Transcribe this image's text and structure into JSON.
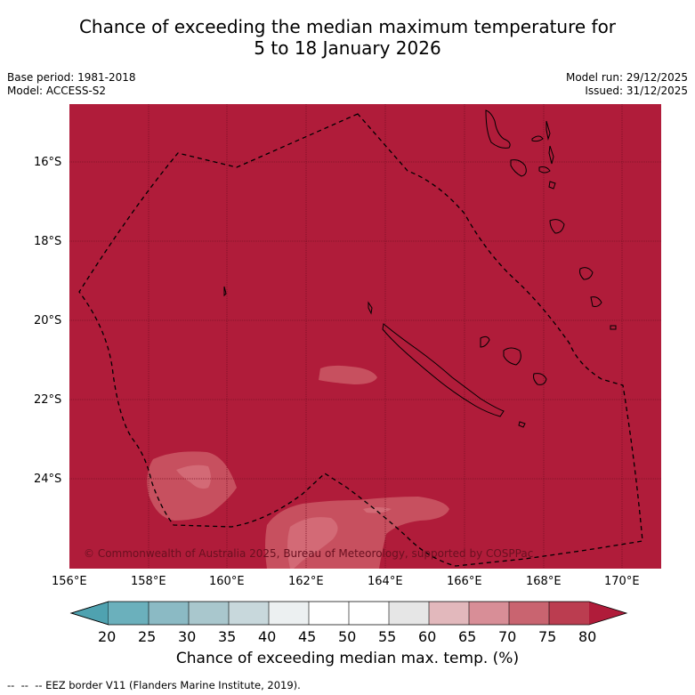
{
  "title": {
    "line1": "Chance of exceeding the median maximum temperature for",
    "line2": "5 to 18 January 2026"
  },
  "meta": {
    "base_period": "Base period: 1981-2018",
    "model": "Model: ACCESS-S2",
    "model_run": "Model run: 29/12/2025",
    "issued": "Issued: 31/12/2025"
  },
  "map": {
    "lat_ticks": [
      "16°S",
      "18°S",
      "20°S",
      "22°S",
      "24°S"
    ],
    "lon_ticks": [
      "156°E",
      "158°E",
      "160°E",
      "162°E",
      "164°E",
      "166°E",
      "168°E",
      "170°E"
    ],
    "copyright": "© Commonwealth of Australia 2025, Bureau of Meteorology, supported by COSPPac",
    "background_color": "#b01c3a",
    "contour_color": "#c7505f",
    "inner_contour_color": "#d36a76"
  },
  "colorbar": {
    "ticks": [
      "20",
      "25",
      "30",
      "35",
      "40",
      "45",
      "50",
      "55",
      "60",
      "65",
      "70",
      "75",
      "80"
    ],
    "colors": [
      "#4fa2b0",
      "#6bb0bc",
      "#8bbac4",
      "#a9c7cd",
      "#c8d8dc",
      "#ecf0f1",
      "#ffffff",
      "#ffffff",
      "#e6e6e6",
      "#e2b8bc",
      "#d88e97",
      "#c96470",
      "#bb3d50",
      "#b01c3a"
    ],
    "label": "Chance of exceeding median max. temp. (%)"
  },
  "footer": "--  --  -- EEZ border V11 (Flanders Marine Institute, 2019)."
}
